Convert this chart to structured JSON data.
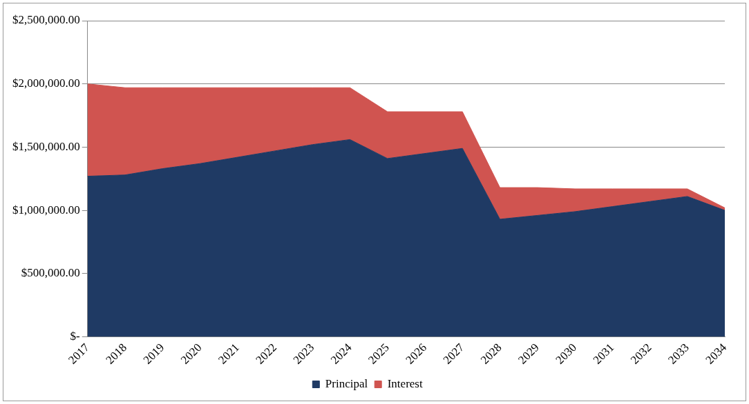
{
  "chart_data": {
    "type": "area",
    "stacked": true,
    "categories": [
      "2017",
      "2018",
      "2019",
      "2020",
      "2021",
      "2022",
      "2023",
      "2024",
      "2025",
      "2026",
      "2027",
      "2028",
      "2029",
      "2030",
      "2031",
      "2032",
      "2033",
      "2034"
    ],
    "series": [
      {
        "name": "Principal",
        "color": "#1f3a64",
        "values": [
          1270000,
          1280000,
          1330000,
          1370000,
          1420000,
          1470000,
          1520000,
          1560000,
          1410000,
          1450000,
          1490000,
          930000,
          960000,
          990000,
          1030000,
          1070000,
          1110000,
          1000000
        ]
      },
      {
        "name": "Interest",
        "color": "#d05450",
        "values": [
          730000,
          690000,
          640000,
          600000,
          550000,
          500000,
          450000,
          410000,
          370000,
          330000,
          290000,
          250000,
          220000,
          180000,
          140000,
          100000,
          60000,
          20000
        ]
      }
    ],
    "ylim": [
      0,
      2500000
    ],
    "yticks": [
      {
        "value": 0,
        "label": "$-"
      },
      {
        "value": 500000,
        "label": "$500,000.00"
      },
      {
        "value": 1000000,
        "label": "$1,000,000.00"
      },
      {
        "value": 1500000,
        "label": "$1,500,000.00"
      },
      {
        "value": 2000000,
        "label": "$2,000,000.00"
      },
      {
        "value": 2500000,
        "label": "$2,500,000.00"
      }
    ],
    "grid": "y",
    "legend": "bottom"
  }
}
